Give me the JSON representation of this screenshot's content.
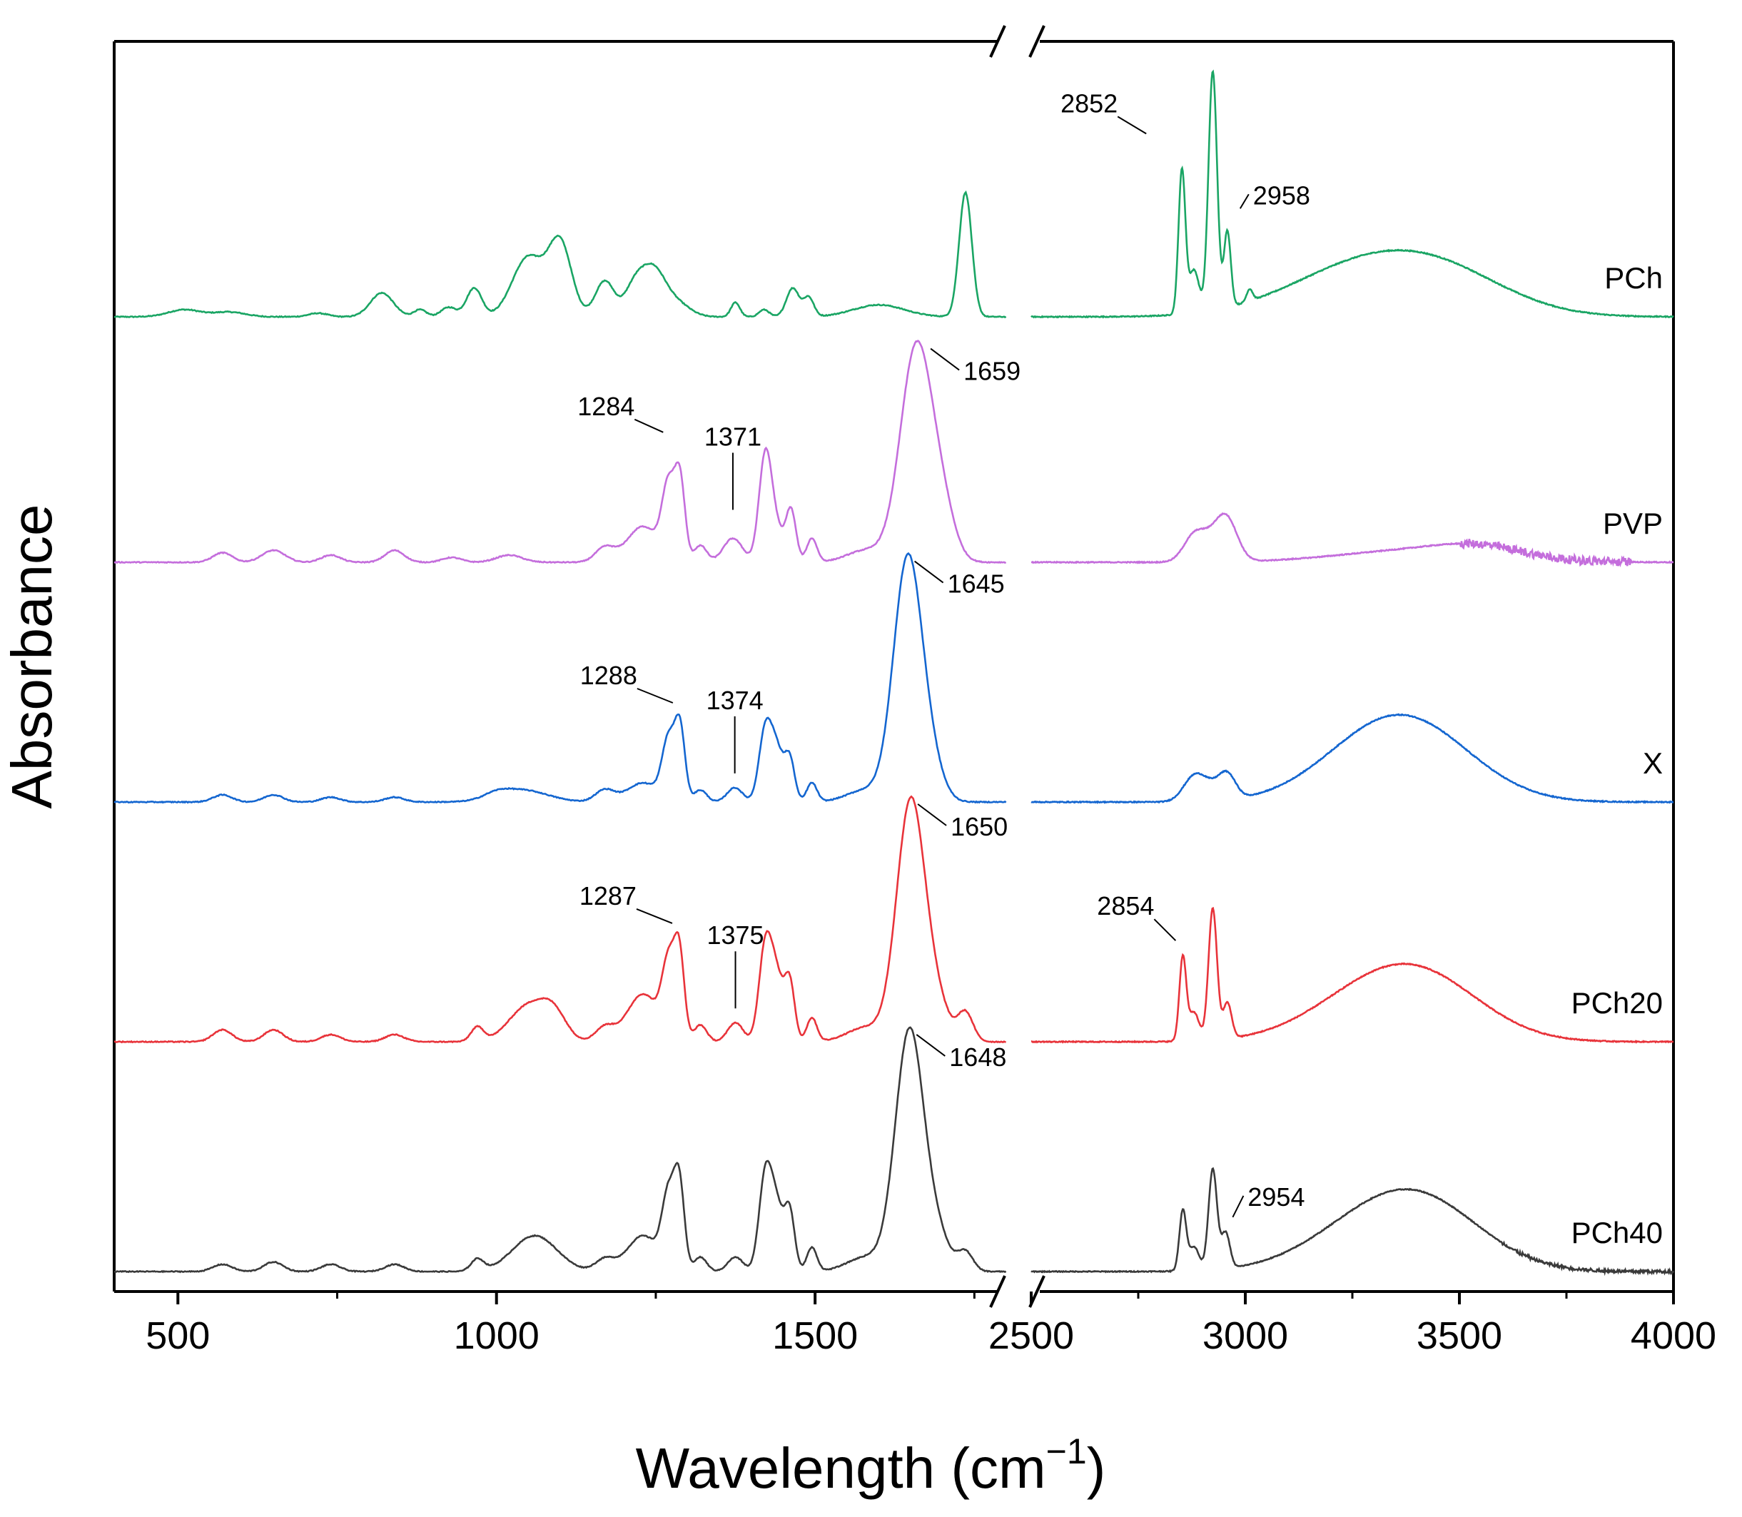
{
  "chart_data": {
    "type": "line",
    "title": "",
    "xlabel": "Wavelength (cm",
    "xlabel_sup": "−1",
    "xlabel_close": ")",
    "ylabel": "Absorbance",
    "x_break": [
      1800,
      2500
    ],
    "segments": [
      {
        "xlim": [
          400,
          1800
        ],
        "ticks": [
          500,
          1000,
          1500
        ],
        "minor_ticks": [
          750,
          1250,
          1750
        ]
      },
      {
        "xlim": [
          2500,
          4000
        ],
        "ticks": [
          2500,
          3000,
          3500,
          4000
        ],
        "minor_ticks": [
          2750,
          3250,
          3750
        ]
      }
    ],
    "series": [
      {
        "name": "PCh",
        "color": "#1aa564",
        "offset": 4.2,
        "noise": 0.004,
        "peaks": [
          [
            510,
            0.03,
            25
          ],
          [
            580,
            0.02,
            25
          ],
          [
            720,
            0.015,
            15
          ],
          [
            820,
            0.1,
            18
          ],
          [
            880,
            0.03,
            10
          ],
          [
            925,
            0.04,
            12
          ],
          [
            965,
            0.12,
            12
          ],
          [
            1050,
            0.25,
            25
          ],
          [
            1100,
            0.3,
            18
          ],
          [
            1170,
            0.15,
            15
          ],
          [
            1215,
            0.1,
            15
          ],
          [
            1245,
            0.2,
            20
          ],
          [
            1285,
            0.05,
            20
          ],
          [
            1375,
            0.06,
            7
          ],
          [
            1420,
            0.03,
            8
          ],
          [
            1465,
            0.12,
            10
          ],
          [
            1490,
            0.08,
            8
          ],
          [
            1600,
            0.05,
            40
          ],
          [
            1736,
            0.52,
            10
          ],
          [
            2852,
            0.6,
            8
          ],
          [
            2880,
            0.18,
            12
          ],
          [
            2924,
            1.0,
            10
          ],
          [
            2958,
            0.32,
            8
          ],
          [
            3010,
            0.05,
            7
          ],
          [
            3200,
            0.1,
            160
          ],
          [
            3380,
            0.18,
            170
          ],
          [
            3500,
            0.06,
            150
          ]
        ]
      },
      {
        "name": "PVP",
        "color": "#c46edc",
        "offset": 3.14,
        "noise": 0.004,
        "noise_range": [
          3500,
          3900,
          0.018
        ],
        "peaks": [
          [
            570,
            0.04,
            15
          ],
          [
            650,
            0.05,
            18
          ],
          [
            740,
            0.03,
            15
          ],
          [
            840,
            0.05,
            15
          ],
          [
            930,
            0.02,
            15
          ],
          [
            1020,
            0.03,
            20
          ],
          [
            1170,
            0.06,
            15
          ],
          [
            1230,
            0.15,
            25
          ],
          [
            1270,
            0.3,
            10
          ],
          [
            1288,
            0.33,
            8
          ],
          [
            1320,
            0.07,
            10
          ],
          [
            1371,
            0.1,
            15
          ],
          [
            1422,
            0.45,
            10
          ],
          [
            1440,
            0.12,
            10
          ],
          [
            1462,
            0.22,
            8
          ],
          [
            1495,
            0.1,
            8
          ],
          [
            1580,
            0.05,
            30
          ],
          [
            1659,
            0.9,
            25
          ],
          [
            1700,
            0.18,
            20
          ],
          [
            2880,
            0.1,
            25
          ],
          [
            2958,
            0.15,
            25
          ],
          [
            2925,
            0.08,
            30
          ],
          [
            3400,
            0.05,
            180
          ],
          [
            3550,
            0.04,
            100
          ]
        ]
      },
      {
        "name": "X",
        "color": "#1466d0",
        "offset": 2.1,
        "noise": 0.004,
        "peaks": [
          [
            570,
            0.03,
            15
          ],
          [
            650,
            0.03,
            15
          ],
          [
            740,
            0.02,
            15
          ],
          [
            840,
            0.02,
            15
          ],
          [
            1040,
            0.05,
            40
          ],
          [
            1000,
            0.02,
            20
          ],
          [
            1170,
            0.05,
            15
          ],
          [
            1230,
            0.08,
            25
          ],
          [
            1270,
            0.25,
            10
          ],
          [
            1288,
            0.3,
            8
          ],
          [
            1320,
            0.05,
            10
          ],
          [
            1374,
            0.06,
            12
          ],
          [
            1422,
            0.3,
            10
          ],
          [
            1440,
            0.2,
            10
          ],
          [
            1460,
            0.18,
            8
          ],
          [
            1495,
            0.08,
            8
          ],
          [
            1580,
            0.05,
            30
          ],
          [
            1645,
            1.0,
            22
          ],
          [
            1680,
            0.15,
            20
          ],
          [
            2880,
            0.1,
            25
          ],
          [
            2958,
            0.1,
            20
          ],
          [
            2920,
            0.05,
            25
          ],
          [
            3300,
            0.2,
            140
          ],
          [
            3420,
            0.2,
            140
          ]
        ]
      },
      {
        "name": "PCh20",
        "color": "#e8333a",
        "offset": 1.07,
        "noise": 0.004,
        "peaks": [
          [
            570,
            0.05,
            15
          ],
          [
            650,
            0.05,
            15
          ],
          [
            740,
            0.03,
            15
          ],
          [
            840,
            0.03,
            15
          ],
          [
            970,
            0.06,
            10
          ],
          [
            1050,
            0.15,
            30
          ],
          [
            1090,
            0.1,
            20
          ],
          [
            1170,
            0.06,
            15
          ],
          [
            1230,
            0.2,
            25
          ],
          [
            1270,
            0.3,
            10
          ],
          [
            1287,
            0.35,
            8
          ],
          [
            1320,
            0.07,
            10
          ],
          [
            1375,
            0.08,
            12
          ],
          [
            1422,
            0.4,
            10
          ],
          [
            1440,
            0.25,
            10
          ],
          [
            1460,
            0.25,
            8
          ],
          [
            1495,
            0.1,
            8
          ],
          [
            1580,
            0.06,
            30
          ],
          [
            1650,
            1.0,
            22
          ],
          [
            1690,
            0.15,
            20
          ],
          [
            1736,
            0.12,
            12
          ],
          [
            2854,
            0.35,
            8
          ],
          [
            2880,
            0.12,
            12
          ],
          [
            2924,
            0.55,
            10
          ],
          [
            2958,
            0.15,
            10
          ],
          [
            3300,
            0.18,
            150
          ],
          [
            3430,
            0.18,
            140
          ]
        ]
      },
      {
        "name": "PCh40",
        "color": "#3a3a3a",
        "offset": 0.0,
        "noise": 0.004,
        "noise_range": [
          3600,
          4000,
          0.006
        ],
        "peaks": [
          [
            570,
            0.03,
            15
          ],
          [
            650,
            0.04,
            15
          ],
          [
            740,
            0.03,
            15
          ],
          [
            840,
            0.03,
            15
          ],
          [
            970,
            0.05,
            10
          ],
          [
            1060,
            0.15,
            35
          ],
          [
            1170,
            0.05,
            15
          ],
          [
            1230,
            0.15,
            25
          ],
          [
            1270,
            0.3,
            10
          ],
          [
            1287,
            0.35,
            8
          ],
          [
            1320,
            0.06,
            10
          ],
          [
            1375,
            0.06,
            12
          ],
          [
            1422,
            0.4,
            10
          ],
          [
            1440,
            0.25,
            10
          ],
          [
            1460,
            0.25,
            8
          ],
          [
            1495,
            0.1,
            8
          ],
          [
            1580,
            0.06,
            30
          ],
          [
            1648,
            1.0,
            22
          ],
          [
            1690,
            0.15,
            20
          ],
          [
            1736,
            0.08,
            12
          ],
          [
            2854,
            0.25,
            8
          ],
          [
            2880,
            0.1,
            12
          ],
          [
            2924,
            0.42,
            10
          ],
          [
            2954,
            0.15,
            10
          ],
          [
            3300,
            0.18,
            150
          ],
          [
            3430,
            0.2,
            140
          ]
        ]
      }
    ],
    "annotations": [
      {
        "series": "PCh",
        "text": "2852",
        "x": 2852
      },
      {
        "series": "PCh",
        "text": "2958",
        "x": 2958
      },
      {
        "series": "PVP",
        "text": "1659",
        "x": 1659
      },
      {
        "series": "PVP",
        "text": "1284",
        "x": 1284
      },
      {
        "series": "PVP",
        "text": "1371",
        "x": 1371
      },
      {
        "series": "X",
        "text": "1645",
        "x": 1645
      },
      {
        "series": "X",
        "text": "1288",
        "x": 1288
      },
      {
        "series": "X",
        "text": "1374",
        "x": 1374
      },
      {
        "series": "PCh20",
        "text": "1650",
        "x": 1650
      },
      {
        "series": "PCh20",
        "text": "1287",
        "x": 1287
      },
      {
        "series": "PCh20",
        "text": "1375",
        "x": 1375
      },
      {
        "series": "PCh20",
        "text": "2854",
        "x": 2854
      },
      {
        "series": "PCh40",
        "text": "1648",
        "x": 1648
      },
      {
        "series": "PCh40",
        "text": "2954",
        "x": 2954
      }
    ]
  }
}
